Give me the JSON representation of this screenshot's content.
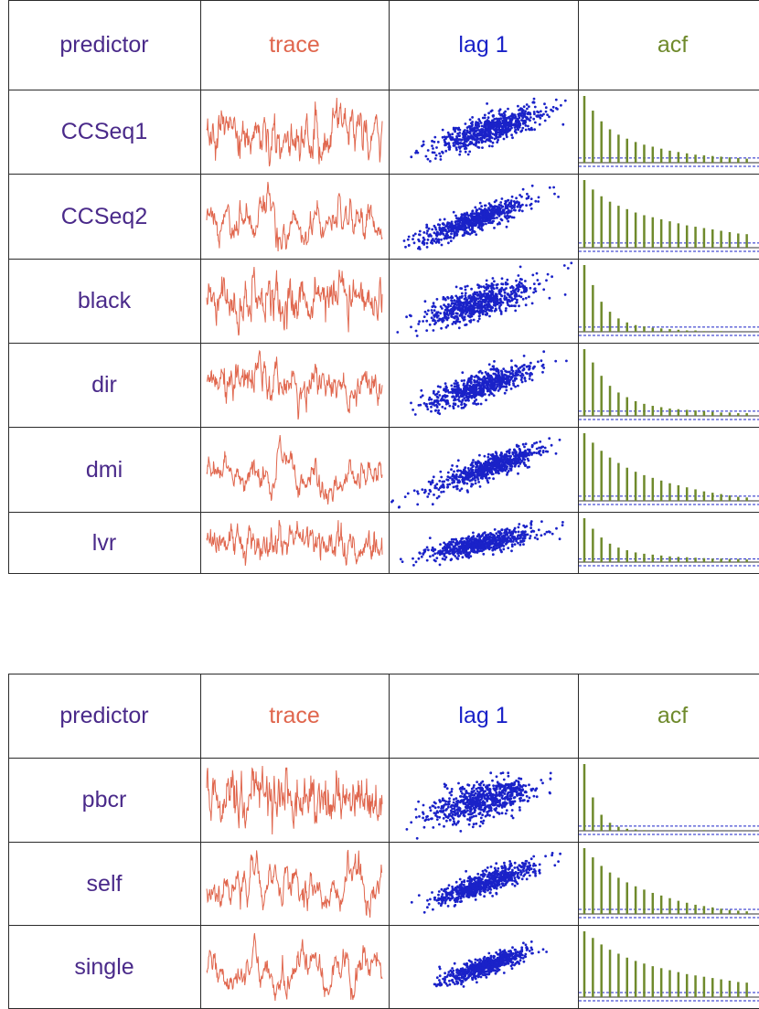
{
  "headers": {
    "predictor": "predictor",
    "trace": "trace",
    "lag": "lag 1",
    "acf": "acf"
  },
  "colors": {
    "predictor_text": "#4a2a8a",
    "trace": "#e0664d",
    "lag": "#1a22c8",
    "acf_bar": "#6f8a2c",
    "acf_band": "#1a22c8",
    "grid": "#2b2b2b"
  },
  "icons": {
    "trace": "time-series-trace",
    "lag": "lag-1-scatter",
    "acf": "autocorrelation-bars"
  },
  "chart_data": [
    {
      "type": "table",
      "title": "",
      "columns": [
        "predictor",
        "trace",
        "lag 1",
        "acf"
      ],
      "rows": [
        {
          "predictor": "CCSeq1",
          "acf": [
            1.0,
            0.78,
            0.62,
            0.5,
            0.42,
            0.36,
            0.31,
            0.27,
            0.24,
            0.21,
            0.18,
            0.16,
            0.14,
            0.12,
            0.11,
            0.1,
            0.09,
            0.08,
            0.07,
            0.06
          ]
        },
        {
          "predictor": "CCSeq2",
          "acf": [
            1.0,
            0.86,
            0.76,
            0.68,
            0.62,
            0.57,
            0.52,
            0.48,
            0.45,
            0.42,
            0.39,
            0.36,
            0.33,
            0.31,
            0.29,
            0.27,
            0.25,
            0.23,
            0.21,
            0.2
          ]
        },
        {
          "predictor": "black",
          "acf": [
            1.0,
            0.7,
            0.45,
            0.3,
            0.2,
            0.14,
            0.1,
            0.08,
            0.06,
            0.05,
            0.04,
            0.03,
            0.02,
            0.02,
            0.01,
            0.01,
            0.01,
            0.0,
            0.0,
            0.0
          ]
        },
        {
          "predictor": "dir",
          "acf": [
            1.0,
            0.8,
            0.6,
            0.45,
            0.35,
            0.28,
            0.22,
            0.18,
            0.15,
            0.13,
            0.11,
            0.1,
            0.09,
            0.08,
            0.07,
            0.06,
            0.05,
            0.05,
            0.04,
            0.04
          ]
        },
        {
          "predictor": "dmi",
          "acf": [
            1.0,
            0.86,
            0.74,
            0.64,
            0.56,
            0.49,
            0.43,
            0.38,
            0.34,
            0.3,
            0.26,
            0.23,
            0.2,
            0.17,
            0.14,
            0.12,
            0.1,
            0.08,
            0.06,
            0.05
          ]
        },
        {
          "predictor": "lvr",
          "acf": [
            1.0,
            0.76,
            0.56,
            0.42,
            0.33,
            0.27,
            0.22,
            0.19,
            0.17,
            0.15,
            0.13,
            0.12,
            0.11,
            0.1,
            0.09,
            0.08,
            0.08,
            0.07,
            0.07,
            0.06
          ]
        }
      ]
    },
    {
      "type": "table",
      "title": "",
      "columns": [
        "predictor",
        "trace",
        "lag 1",
        "acf"
      ],
      "rows": [
        {
          "predictor": "pbcr",
          "acf": [
            1.0,
            0.5,
            0.24,
            0.12,
            0.06,
            0.03,
            0.02,
            0.01,
            0.01,
            0.0,
            0.0,
            0.0,
            0.0,
            0.01,
            0.01,
            0.0,
            0.0,
            0.0,
            0.0,
            0.0
          ]
        },
        {
          "predictor": "self",
          "acf": [
            1.0,
            0.86,
            0.73,
            0.63,
            0.55,
            0.48,
            0.42,
            0.37,
            0.32,
            0.28,
            0.24,
            0.2,
            0.17,
            0.14,
            0.12,
            0.1,
            0.08,
            0.06,
            0.05,
            0.04
          ]
        },
        {
          "predictor": "single",
          "acf": [
            1.0,
            0.9,
            0.8,
            0.72,
            0.66,
            0.6,
            0.55,
            0.51,
            0.47,
            0.44,
            0.41,
            0.38,
            0.35,
            0.33,
            0.31,
            0.29,
            0.27,
            0.25,
            0.23,
            0.22
          ]
        }
      ]
    }
  ]
}
